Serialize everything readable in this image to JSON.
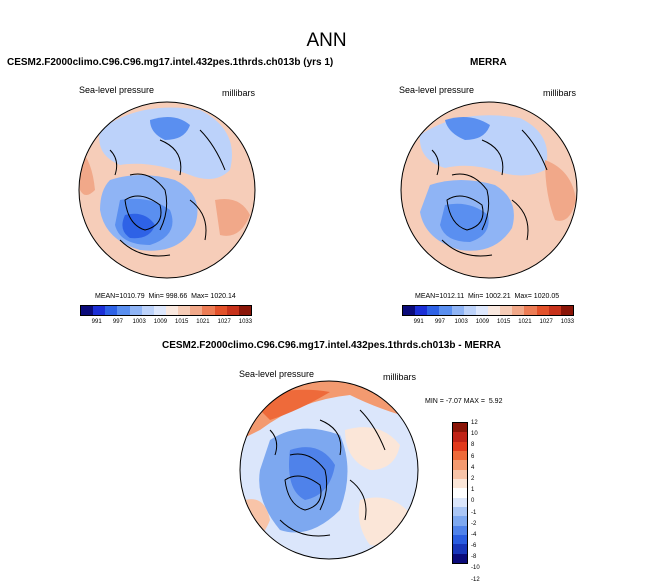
{
  "main_title": "ANN",
  "panels": [
    {
      "title": "CESM2.F2000climo.C96.C96.mg17.intel.432pes.1thrds.ch013b (yrs 1)",
      "field": "Sea-level pressure",
      "units": "millibars",
      "mean_label": "MEAN=",
      "mean": "1010.79",
      "min_label": "Min=",
      "min": "998.66",
      "max_label": "Max=",
      "max": "1020.14"
    },
    {
      "title": "MERRA",
      "field": "Sea-level pressure",
      "units": "millibars",
      "mean_label": "MEAN=",
      "mean": "1012.11",
      "min_label": "Min=",
      "min": "1002.21",
      "max_label": "Max=",
      "max": "1020.05"
    },
    {
      "title": "CESM2.F2000climo.C96.C96.mg17.intel.432pes.1thrds.ch013b - MERRA",
      "field": "Sea-level pressure",
      "units": "millibars",
      "min_label": "MIN =",
      "min": "-7.07",
      "max_label": "MAX =",
      "max": "5.92"
    }
  ],
  "colorbar_levels": [
    "991",
    "997",
    "1003",
    "1009",
    "1015",
    "1021",
    "1027",
    "1033"
  ],
  "colorbar_colors": [
    "#0b0b7a",
    "#1c2fd6",
    "#2e62e6",
    "#5a8ff0",
    "#8fb4f5",
    "#bcd2fa",
    "#dde7fc",
    "#f9e8df",
    "#f6ccb7",
    "#f1a889",
    "#ec7c55",
    "#e2512a",
    "#c7321b",
    "#8a1508"
  ],
  "diff_levels": [
    "12",
    "10",
    "8",
    "6",
    "4",
    "2",
    "1",
    "0",
    "-1",
    "-2",
    "-4",
    "-6",
    "-8",
    "-10",
    "-12"
  ],
  "diff_colors": [
    "#8a1508",
    "#c02317",
    "#e23a1d",
    "#ee6a3a",
    "#f39a70",
    "#f8c4a8",
    "#fbe6d8",
    "#ffffff",
    "#dbe6fb",
    "#aac6f5",
    "#7da8f0",
    "#4f82ea",
    "#2a5de0",
    "#1836b9",
    "#0b0b7a"
  ],
  "map_palette": {
    "ocean_light": "#f6cdb9",
    "warm": "#f1a889",
    "cool_light": "#bcd2fa",
    "cool": "#8fb4f5",
    "cool_mid": "#5a8ff0",
    "cool_deep": "#2e62e6",
    "coast": "#000000"
  }
}
